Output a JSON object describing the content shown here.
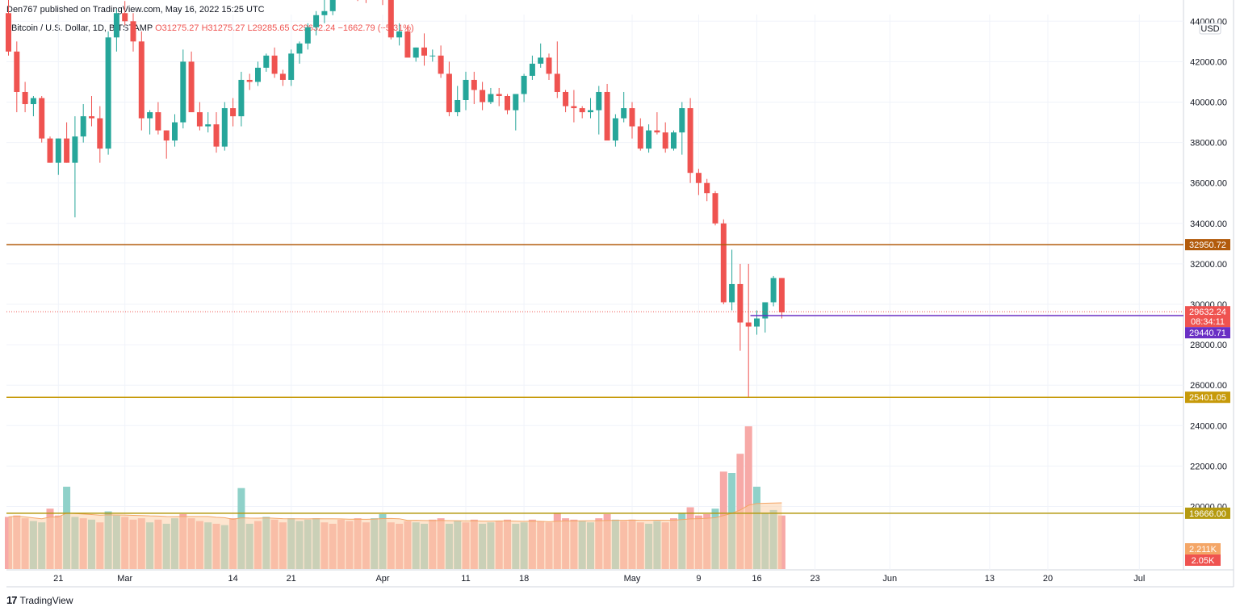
{
  "header": {
    "published_line": "Den767 published on TradingView.com, May 16, 2022 15:25 UTC"
  },
  "legend": {
    "symbol": "Bitcoin / U.S. Dollar, 1D, BITSTAMP",
    "open": "O31275.27",
    "high": "H31275.27",
    "low": "L29285.65",
    "close": "C29632.24",
    "change": "−1662.79 (−5.31%)"
  },
  "footer": {
    "logo_mark": "17",
    "brand": "TradingView"
  },
  "chart_data": {
    "type": "candlestick",
    "symbol": "Bitcoin / U.S. Dollar, 1D, BITSTAMP",
    "currency": "USD",
    "colors": {
      "up": "#26a69a",
      "down": "#ef5350",
      "up_volume": "#8fd1c9",
      "down_volume": "#f7a9a7",
      "ma_fill": "#fbcfa7",
      "ma_line": "#f4a667"
    },
    "y_ticks": [
      44000,
      42000,
      40000,
      38000,
      36000,
      34000,
      32000,
      30000,
      28000,
      26000,
      24000,
      22000,
      20000
    ],
    "y_tick_labels": [
      "44000.00",
      "42000.00",
      "40000.00",
      "38000.00",
      "36000.00",
      "34000.00",
      "32000.00",
      "30000.00",
      "28000.00",
      "26000.00",
      "24000.00",
      "22000.00",
      "20000.00"
    ],
    "x_ticks": [
      {
        "label": "21",
        "index": 6
      },
      {
        "label": "Mar",
        "index": 14
      },
      {
        "label": "14",
        "index": 27
      },
      {
        "label": "21",
        "index": 34
      },
      {
        "label": "Apr",
        "index": 45
      },
      {
        "label": "11",
        "index": 55
      },
      {
        "label": "18",
        "index": 62
      },
      {
        "label": "May",
        "index": 75
      },
      {
        "label": "9",
        "index": 83
      },
      {
        "label": "16",
        "index": 90
      },
      {
        "label": "23",
        "index": 97
      },
      {
        "label": "Jun",
        "index": 106
      },
      {
        "label": "13",
        "index": 118
      },
      {
        "label": "20",
        "index": 125
      },
      {
        "label": "Jul",
        "index": 136
      }
    ],
    "horizontal_lines": [
      {
        "value": 32950.72,
        "label": "32950.72",
        "color": "#b25b0c"
      },
      {
        "value": 25401.05,
        "label": "25401.05",
        "color": "#c79a0a"
      },
      {
        "value": 19666.0,
        "label": "19666.00",
        "color": "#b59a10"
      }
    ],
    "support_line": {
      "value": 29440.71,
      "label": "29440.71",
      "start_index": 90,
      "color": "#6a2fc4"
    },
    "last_price": {
      "value": 29632.24,
      "label": "29632.24",
      "countdown": "08:34:11"
    },
    "volume_labels": [
      {
        "label": "2.211K",
        "color": "#f4a667"
      },
      {
        "label": "2.05K",
        "color": "#ef5350"
      }
    ],
    "candles": [
      [
        44400,
        45400,
        42300,
        42500
      ],
      [
        42500,
        43000,
        39500,
        40500
      ],
      [
        40500,
        41000,
        39500,
        39900
      ],
      [
        39900,
        40300,
        39300,
        40200
      ],
      [
        40200,
        40300,
        38000,
        38200
      ],
      [
        38200,
        38300,
        37000,
        37000
      ],
      [
        37000,
        38200,
        36400,
        38200
      ],
      [
        38200,
        39000,
        37000,
        37000
      ],
      [
        37000,
        39300,
        34300,
        38300
      ],
      [
        38300,
        39900,
        38000,
        39300
      ],
      [
        39300,
        40300,
        38800,
        39200
      ],
      [
        39200,
        39800,
        37000,
        37700
      ],
      [
        37700,
        43500,
        37400,
        43200
      ],
      [
        43200,
        44600,
        42500,
        44400
      ],
      [
        44400,
        45000,
        43800,
        44000
      ],
      [
        44000,
        44400,
        42500,
        43000
      ],
      [
        43000,
        43500,
        38600,
        39200
      ],
      [
        39200,
        39600,
        38400,
        39500
      ],
      [
        39500,
        40000,
        38400,
        38600
      ],
      [
        38600,
        38600,
        37200,
        38100
      ],
      [
        38100,
        39400,
        37800,
        39000
      ],
      [
        39000,
        42600,
        38700,
        42000
      ],
      [
        42000,
        42500,
        39500,
        39500
      ],
      [
        39500,
        40000,
        38600,
        38800
      ],
      [
        38800,
        39500,
        38500,
        38900
      ],
      [
        38900,
        39500,
        37500,
        37800
      ],
      [
        37800,
        40000,
        37600,
        39700
      ],
      [
        39700,
        40200,
        38800,
        39300
      ],
      [
        39300,
        41500,
        38800,
        41100
      ],
      [
        41100,
        41400,
        40600,
        41000
      ],
      [
        41000,
        42000,
        40800,
        41700
      ],
      [
        41700,
        42400,
        41500,
        42300
      ],
      [
        42300,
        42700,
        41200,
        41400
      ],
      [
        41400,
        41600,
        40800,
        41100
      ],
      [
        41100,
        42600,
        40800,
        42400
      ],
      [
        42400,
        43000,
        41900,
        42900
      ],
      [
        42900,
        43900,
        42600,
        43700
      ],
      [
        43700,
        44500,
        43300,
        44300
      ],
      [
        44300,
        45400,
        43900,
        44500
      ],
      [
        44500,
        47000,
        44300,
        46400
      ],
      [
        46400,
        47400,
        45700,
        46700
      ],
      [
        46700,
        47100,
        45200,
        45700
      ],
      [
        45700,
        46300,
        45000,
        45500
      ],
      [
        45500,
        45800,
        44900,
        45400
      ],
      [
        45400,
        46300,
        45100,
        46000
      ],
      [
        46000,
        46600,
        44800,
        45600
      ],
      [
        45600,
        45900,
        43100,
        43200
      ],
      [
        43200,
        43900,
        42800,
        43500
      ],
      [
        43500,
        43800,
        42400,
        42200
      ],
      [
        42200,
        42700,
        42000,
        42700
      ],
      [
        42700,
        43400,
        41800,
        42300
      ],
      [
        42300,
        42600,
        42000,
        42300
      ],
      [
        42300,
        42800,
        41200,
        41400
      ],
      [
        41400,
        42000,
        39300,
        39500
      ],
      [
        39500,
        40800,
        39300,
        40100
      ],
      [
        40100,
        41500,
        39600,
        41100
      ],
      [
        41100,
        41500,
        39900,
        40600
      ],
      [
        40600,
        41000,
        39600,
        40000
      ],
      [
        40000,
        40700,
        39900,
        40400
      ],
      [
        40400,
        40700,
        39800,
        40300
      ],
      [
        40300,
        40400,
        39400,
        39600
      ],
      [
        39600,
        40400,
        38600,
        40400
      ],
      [
        40400,
        41400,
        40000,
        41300
      ],
      [
        41300,
        42300,
        41100,
        41900
      ],
      [
        41900,
        42900,
        41700,
        42200
      ],
      [
        42200,
        42400,
        41100,
        41400
      ],
      [
        41400,
        43000,
        40200,
        40500
      ],
      [
        40500,
        40600,
        39500,
        39800
      ],
      [
        39800,
        40600,
        39000,
        39700
      ],
      [
        39700,
        39800,
        39200,
        39500
      ],
      [
        39500,
        40200,
        39200,
        39600
      ],
      [
        39600,
        40800,
        38400,
        40500
      ],
      [
        40500,
        40900,
        38200,
        38100
      ],
      [
        38100,
        39400,
        37800,
        39200
      ],
      [
        39200,
        40500,
        39000,
        39700
      ],
      [
        39700,
        40000,
        38200,
        38800
      ],
      [
        38800,
        39200,
        37600,
        37700
      ],
      [
        37700,
        38900,
        37500,
        38600
      ],
      [
        38600,
        39500,
        38400,
        38500
      ],
      [
        38500,
        39000,
        37500,
        37700
      ],
      [
        37700,
        38600,
        37600,
        38500
      ],
      [
        38500,
        40000,
        37400,
        39700
      ],
      [
        39700,
        40200,
        36000,
        36500
      ],
      [
        36500,
        36700,
        35400,
        36000
      ],
      [
        36000,
        36200,
        35100,
        35500
      ],
      [
        35500,
        35600,
        33900,
        34000
      ],
      [
        34000,
        34200,
        30000,
        30100
      ],
      [
        30100,
        32700,
        29700,
        31000
      ],
      [
        31000,
        32000,
        27700,
        29100
      ],
      [
        29100,
        32000,
        25400,
        28900
      ],
      [
        28900,
        29700,
        28500,
        29300
      ],
      [
        29300,
        30000,
        28600,
        30100
      ],
      [
        30100,
        31400,
        29900,
        31300
      ],
      [
        31300,
        31300,
        29300,
        29600
      ]
    ],
    "volumes": [
      [
        1900,
        "down"
      ],
      [
        1950,
        "down"
      ],
      [
        1850,
        "down"
      ],
      [
        1750,
        "up"
      ],
      [
        1700,
        "up"
      ],
      [
        2200,
        "down"
      ],
      [
        1950,
        "down"
      ],
      [
        3000,
        "up"
      ],
      [
        1900,
        "up"
      ],
      [
        1850,
        "down"
      ],
      [
        1800,
        "up"
      ],
      [
        1700,
        "down"
      ],
      [
        2100,
        "up"
      ],
      [
        1950,
        "up"
      ],
      [
        1900,
        "down"
      ],
      [
        1800,
        "down"
      ],
      [
        1850,
        "down"
      ],
      [
        1700,
        "up"
      ],
      [
        1800,
        "down"
      ],
      [
        1650,
        "up"
      ],
      [
        1850,
        "up"
      ],
      [
        2000,
        "down"
      ],
      [
        1850,
        "down"
      ],
      [
        1750,
        "down"
      ],
      [
        1700,
        "up"
      ],
      [
        1650,
        "down"
      ],
      [
        1600,
        "up"
      ],
      [
        1850,
        "down"
      ],
      [
        2950,
        "up"
      ],
      [
        1650,
        "up"
      ],
      [
        1750,
        "down"
      ],
      [
        1900,
        "up"
      ],
      [
        1800,
        "down"
      ],
      [
        1700,
        "down"
      ],
      [
        1850,
        "up"
      ],
      [
        1750,
        "up"
      ],
      [
        1800,
        "up"
      ],
      [
        1850,
        "up"
      ],
      [
        1700,
        "down"
      ],
      [
        1650,
        "down"
      ],
      [
        1800,
        "down"
      ],
      [
        1750,
        "down"
      ],
      [
        1850,
        "down"
      ],
      [
        1700,
        "down"
      ],
      [
        1850,
        "up"
      ],
      [
        2000,
        "up"
      ],
      [
        1700,
        "down"
      ],
      [
        1650,
        "down"
      ],
      [
        1750,
        "down"
      ],
      [
        1700,
        "up"
      ],
      [
        1650,
        "up"
      ],
      [
        1800,
        "down"
      ],
      [
        1850,
        "down"
      ],
      [
        1650,
        "up"
      ],
      [
        1750,
        "up"
      ],
      [
        1700,
        "down"
      ],
      [
        1800,
        "down"
      ],
      [
        1650,
        "up"
      ],
      [
        1700,
        "up"
      ],
      [
        1750,
        "down"
      ],
      [
        1800,
        "down"
      ],
      [
        1650,
        "up"
      ],
      [
        1700,
        "up"
      ],
      [
        1800,
        "down"
      ],
      [
        1750,
        "down"
      ],
      [
        1700,
        "down"
      ],
      [
        2050,
        "down"
      ],
      [
        1850,
        "down"
      ],
      [
        1800,
        "down"
      ],
      [
        1750,
        "up"
      ],
      [
        1700,
        "up"
      ],
      [
        1850,
        "down"
      ],
      [
        2000,
        "down"
      ],
      [
        1800,
        "up"
      ],
      [
        1750,
        "down"
      ],
      [
        1800,
        "down"
      ],
      [
        1700,
        "down"
      ],
      [
        1650,
        "up"
      ],
      [
        1750,
        "up"
      ],
      [
        1700,
        "down"
      ],
      [
        1850,
        "down"
      ],
      [
        2050,
        "up"
      ],
      [
        2250,
        "down"
      ],
      [
        1950,
        "down"
      ],
      [
        2000,
        "down"
      ],
      [
        2200,
        "up"
      ],
      [
        3550,
        "down"
      ],
      [
        3500,
        "up"
      ],
      [
        4200,
        "down"
      ],
      [
        5200,
        "down"
      ],
      [
        3000,
        "up"
      ],
      [
        2050,
        "up"
      ],
      [
        2150,
        "up"
      ],
      [
        1950,
        "down"
      ]
    ]
  }
}
